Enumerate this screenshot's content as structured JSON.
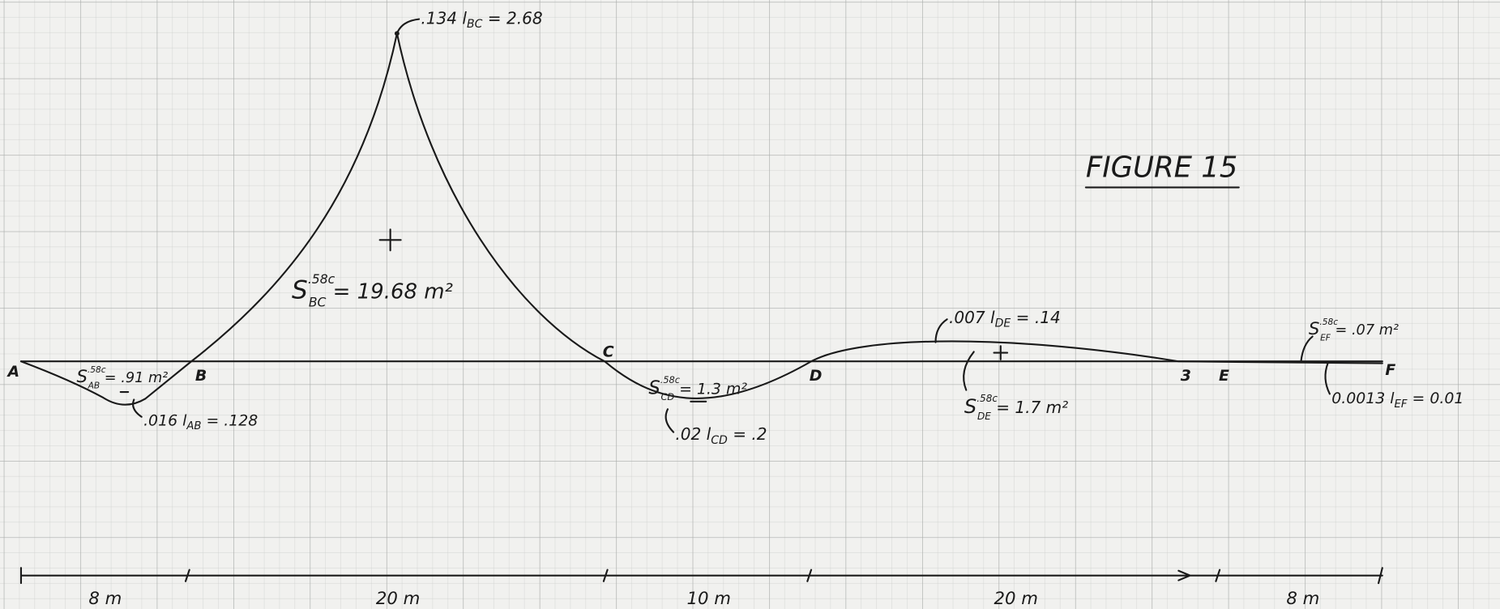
{
  "title": "FIGURE 15",
  "points": [
    "A",
    "B",
    "C",
    "D",
    "3",
    "E",
    "F"
  ],
  "leaders": [
    {
      "lead": ".134 l",
      "sub": "BC",
      "tail": " = 2.68"
    },
    {
      "lead": ".016 l",
      "sub": "AB",
      "tail": " = .128"
    },
    {
      "lead": ".02 l",
      "sub": "CD",
      "tail": " = .2"
    },
    {
      "lead": ".007 l",
      "sub": "DE",
      "tail": " = .14"
    },
    {
      "lead": "0.0013 l",
      "sub": "EF",
      "tail": " = 0.01"
    }
  ],
  "areas": [
    {
      "symbol": "S",
      "sup": ".58c",
      "sub": "BC",
      "tail": " = 19.68 m²"
    },
    {
      "symbol": "S",
      "sup": ".58c",
      "sub": "AB",
      "tail": " = .91 m²"
    },
    {
      "symbol": "S",
      "sup": ".58c",
      "sub": "CD",
      "tail": " = 1.3 m²"
    },
    {
      "symbol": "S",
      "sup": ".58c",
      "sub": "DE",
      "tail": " = 1.7 m²"
    },
    {
      "symbol": "S",
      "sup": ".58c",
      "sub": "EF",
      "tail": " = .07 m²"
    }
  ],
  "spans": [
    "8 m",
    "20 m",
    "10 m",
    "20 m",
    "8 m"
  ]
}
